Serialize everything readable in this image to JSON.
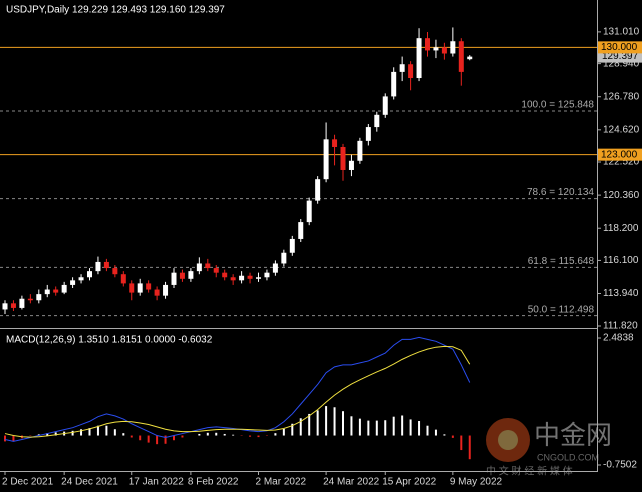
{
  "watermark": {
    "title": "中金网",
    "site": "CNGOLD.COM",
    "tagline": "中 文 财 经 新 媒 体"
  },
  "chart_data": [
    {
      "type": "candlestick",
      "title": "USDJPY,Daily 129.229 129.493 129.160 129.397",
      "up_color": "#ffffff",
      "down_color": "#e8231e",
      "categories": [
        "2 Dec 2021",
        null,
        null,
        null,
        null,
        null,
        null,
        "24 Dec 2021",
        null,
        null,
        null,
        null,
        null,
        null,
        null,
        "17 Jan 2022",
        null,
        null,
        null,
        null,
        null,
        null,
        "8 Feb 2022",
        null,
        null,
        null,
        null,
        null,
        null,
        null,
        "2 Mar 2022",
        null,
        null,
        null,
        null,
        null,
        null,
        null,
        "24 Mar 2022",
        null,
        null,
        null,
        null,
        null,
        null,
        "15 Apr 2022",
        null,
        null,
        null,
        null,
        null,
        null,
        null,
        "9 May 2022",
        null,
        null
      ],
      "ohlc": [
        [
          112.9,
          113.5,
          112.6,
          113.3
        ],
        [
          113.3,
          113.5,
          112.8,
          113.0
        ],
        [
          113.0,
          113.8,
          112.9,
          113.6
        ],
        [
          113.6,
          113.9,
          113.3,
          113.5
        ],
        [
          113.5,
          114.2,
          113.3,
          113.9
        ],
        [
          113.9,
          114.5,
          113.7,
          114.2
        ],
        [
          114.2,
          114.4,
          113.8,
          114.0
        ],
        [
          114.0,
          114.7,
          113.9,
          114.5
        ],
        [
          114.5,
          115.0,
          114.3,
          114.8
        ],
        [
          114.8,
          115.2,
          114.6,
          115.0
        ],
        [
          115.0,
          115.6,
          114.8,
          115.4
        ],
        [
          115.4,
          116.35,
          115.2,
          116.0
        ],
        [
          116.0,
          116.2,
          115.4,
          115.6
        ],
        [
          115.6,
          115.8,
          115.0,
          115.2
        ],
        [
          115.2,
          115.4,
          114.4,
          114.6
        ],
        [
          114.6,
          114.8,
          113.5,
          114.0
        ],
        [
          114.0,
          114.9,
          113.8,
          114.6
        ],
        [
          114.6,
          114.8,
          114.0,
          114.2
        ],
        [
          114.2,
          114.4,
          113.5,
          113.8
        ],
        [
          113.8,
          114.7,
          113.6,
          114.5
        ],
        [
          114.5,
          115.6,
          114.3,
          115.3
        ],
        [
          115.3,
          115.5,
          114.7,
          114.9
        ],
        [
          114.9,
          115.6,
          114.7,
          115.4
        ],
        [
          115.4,
          116.3,
          115.2,
          115.9
        ],
        [
          115.9,
          116.2,
          115.4,
          115.6
        ],
        [
          115.6,
          115.8,
          115.0,
          115.3
        ],
        [
          115.3,
          115.5,
          114.8,
          115.0
        ],
        [
          115.0,
          115.2,
          114.5,
          114.8
        ],
        [
          114.8,
          115.4,
          114.6,
          115.1
        ],
        [
          115.1,
          115.3,
          114.6,
          114.9
        ],
        [
          114.9,
          115.3,
          114.7,
          115.0
        ],
        [
          115.0,
          115.5,
          114.8,
          115.3
        ],
        [
          115.3,
          116.1,
          115.1,
          115.9
        ],
        [
          115.9,
          116.8,
          115.7,
          116.6
        ],
        [
          116.6,
          117.7,
          116.4,
          117.5
        ],
        [
          117.5,
          118.8,
          117.3,
          118.6
        ],
        [
          118.6,
          120.2,
          118.4,
          120.0
        ],
        [
          120.0,
          121.6,
          119.8,
          121.4
        ],
        [
          121.4,
          125.1,
          121.2,
          124.0
        ],
        [
          124.0,
          124.3,
          122.3,
          123.5
        ],
        [
          123.5,
          123.7,
          121.3,
          122.0
        ],
        [
          122.0,
          123.0,
          121.6,
          122.6
        ],
        [
          122.6,
          124.1,
          122.4,
          123.9
        ],
        [
          123.9,
          125.0,
          123.6,
          124.8
        ],
        [
          124.8,
          125.8,
          124.5,
          125.6
        ],
        [
          125.6,
          127.0,
          125.4,
          126.8
        ],
        [
          126.8,
          128.7,
          126.6,
          128.4
        ],
        [
          128.4,
          129.4,
          127.8,
          128.9
        ],
        [
          128.9,
          129.1,
          127.2,
          128.0
        ],
        [
          128.0,
          131.25,
          127.8,
          130.6
        ],
        [
          130.6,
          131.0,
          129.4,
          129.8
        ],
        [
          129.8,
          130.5,
          129.3,
          130.0
        ],
        [
          130.0,
          130.3,
          129.2,
          129.6
        ],
        [
          129.6,
          131.3,
          129.4,
          130.4
        ],
        [
          130.4,
          130.6,
          127.5,
          128.4
        ],
        [
          129.229,
          129.493,
          129.16,
          129.397
        ]
      ],
      "ylim": [
        111.69,
        132.96
      ],
      "yticks": [
        {
          "value": 131.01,
          "label": "131.010"
        },
        {
          "value": 128.94,
          "label": "128.940"
        },
        {
          "value": 126.78,
          "label": "126.780"
        },
        {
          "value": 124.62,
          "label": "124.620"
        },
        {
          "value": 122.52,
          "label": "122.520"
        },
        {
          "value": 120.36,
          "label": "120.360"
        },
        {
          "value": 118.2,
          "label": "118.200"
        },
        {
          "value": 116.1,
          "label": "116.100"
        },
        {
          "value": 113.94,
          "label": "113.940"
        },
        {
          "value": 111.82,
          "label": "111.820"
        }
      ],
      "levels": [
        {
          "value": 130,
          "label": "130.000",
          "color": "#f0a020"
        },
        {
          "value": 123,
          "label": "123.000",
          "color": "#f0a020"
        }
      ],
      "fib_levels": [
        {
          "value": 125.848,
          "label": "100.0 = 125.848"
        },
        {
          "value": 120.134,
          "label": "78.6 = 120.134"
        },
        {
          "value": 115.648,
          "label": "61.8 = 115.648"
        },
        {
          "value": 112.498,
          "label": "50.0 = 112.498"
        }
      ],
      "last_price": 129.397
    },
    {
      "type": "macd",
      "title": "MACD(12,26,9) 1.3510 1.8151 0.0000 -0.6032",
      "series": [
        {
          "color": "#ffffff",
          "negative_color": "#e8231e",
          "values": [
            -0.15,
            -0.15,
            -0.07,
            -0.01,
            0.03,
            0.06,
            0.08,
            0.1,
            0.12,
            0.16,
            0.19,
            0.25,
            0.25,
            0.16,
            0.06,
            -0.05,
            -0.12,
            -0.18,
            -0.22,
            -0.21,
            -0.12,
            -0.05,
            0.0,
            0.04,
            0.07,
            0.07,
            0.04,
            0.02,
            -0.01,
            -0.03,
            -0.04,
            -0.01,
            0.06,
            0.17,
            0.3,
            0.44,
            0.55,
            0.64,
            0.75,
            0.72,
            0.62,
            0.49,
            0.43,
            0.38,
            0.38,
            0.39,
            0.48,
            0.51,
            0.41,
            0.37,
            0.25,
            0.15,
            0.03,
            -0.06,
            -0.37,
            -0.6032
          ]
        },
        {
          "color": "#2a4df0",
          "values": [
            -0.1,
            -0.15,
            -0.1,
            -0.05,
            0.0,
            0.05,
            0.1,
            0.15,
            0.2,
            0.28,
            0.36,
            0.48,
            0.55,
            0.5,
            0.42,
            0.3,
            0.2,
            0.1,
            0.0,
            -0.05,
            0.0,
            0.05,
            0.1,
            0.15,
            0.2,
            0.22,
            0.2,
            0.18,
            0.15,
            0.12,
            0.1,
            0.12,
            0.2,
            0.35,
            0.55,
            0.8,
            1.05,
            1.3,
            1.6,
            1.75,
            1.8,
            1.8,
            1.85,
            1.9,
            2.0,
            2.1,
            2.3,
            2.45,
            2.45,
            2.5,
            2.45,
            2.4,
            2.3,
            2.2,
            1.8,
            1.351
          ]
        },
        {
          "color": "#f0e040",
          "values": [
            0.05,
            0.0,
            -0.03,
            -0.04,
            -0.03,
            -0.01,
            0.02,
            0.05,
            0.08,
            0.12,
            0.17,
            0.23,
            0.3,
            0.34,
            0.36,
            0.35,
            0.32,
            0.28,
            0.22,
            0.16,
            0.12,
            0.1,
            0.1,
            0.11,
            0.13,
            0.15,
            0.16,
            0.16,
            0.16,
            0.15,
            0.14,
            0.13,
            0.14,
            0.18,
            0.25,
            0.36,
            0.5,
            0.66,
            0.85,
            1.03,
            1.18,
            1.31,
            1.42,
            1.52,
            1.62,
            1.71,
            1.82,
            1.94,
            2.04,
            2.13,
            2.2,
            2.25,
            2.27,
            2.26,
            2.17,
            1.8151
          ]
        }
      ],
      "ylim": [
        -0.878,
        2.688
      ],
      "yticks": [
        2.4838,
        -0.7502
      ]
    }
  ]
}
